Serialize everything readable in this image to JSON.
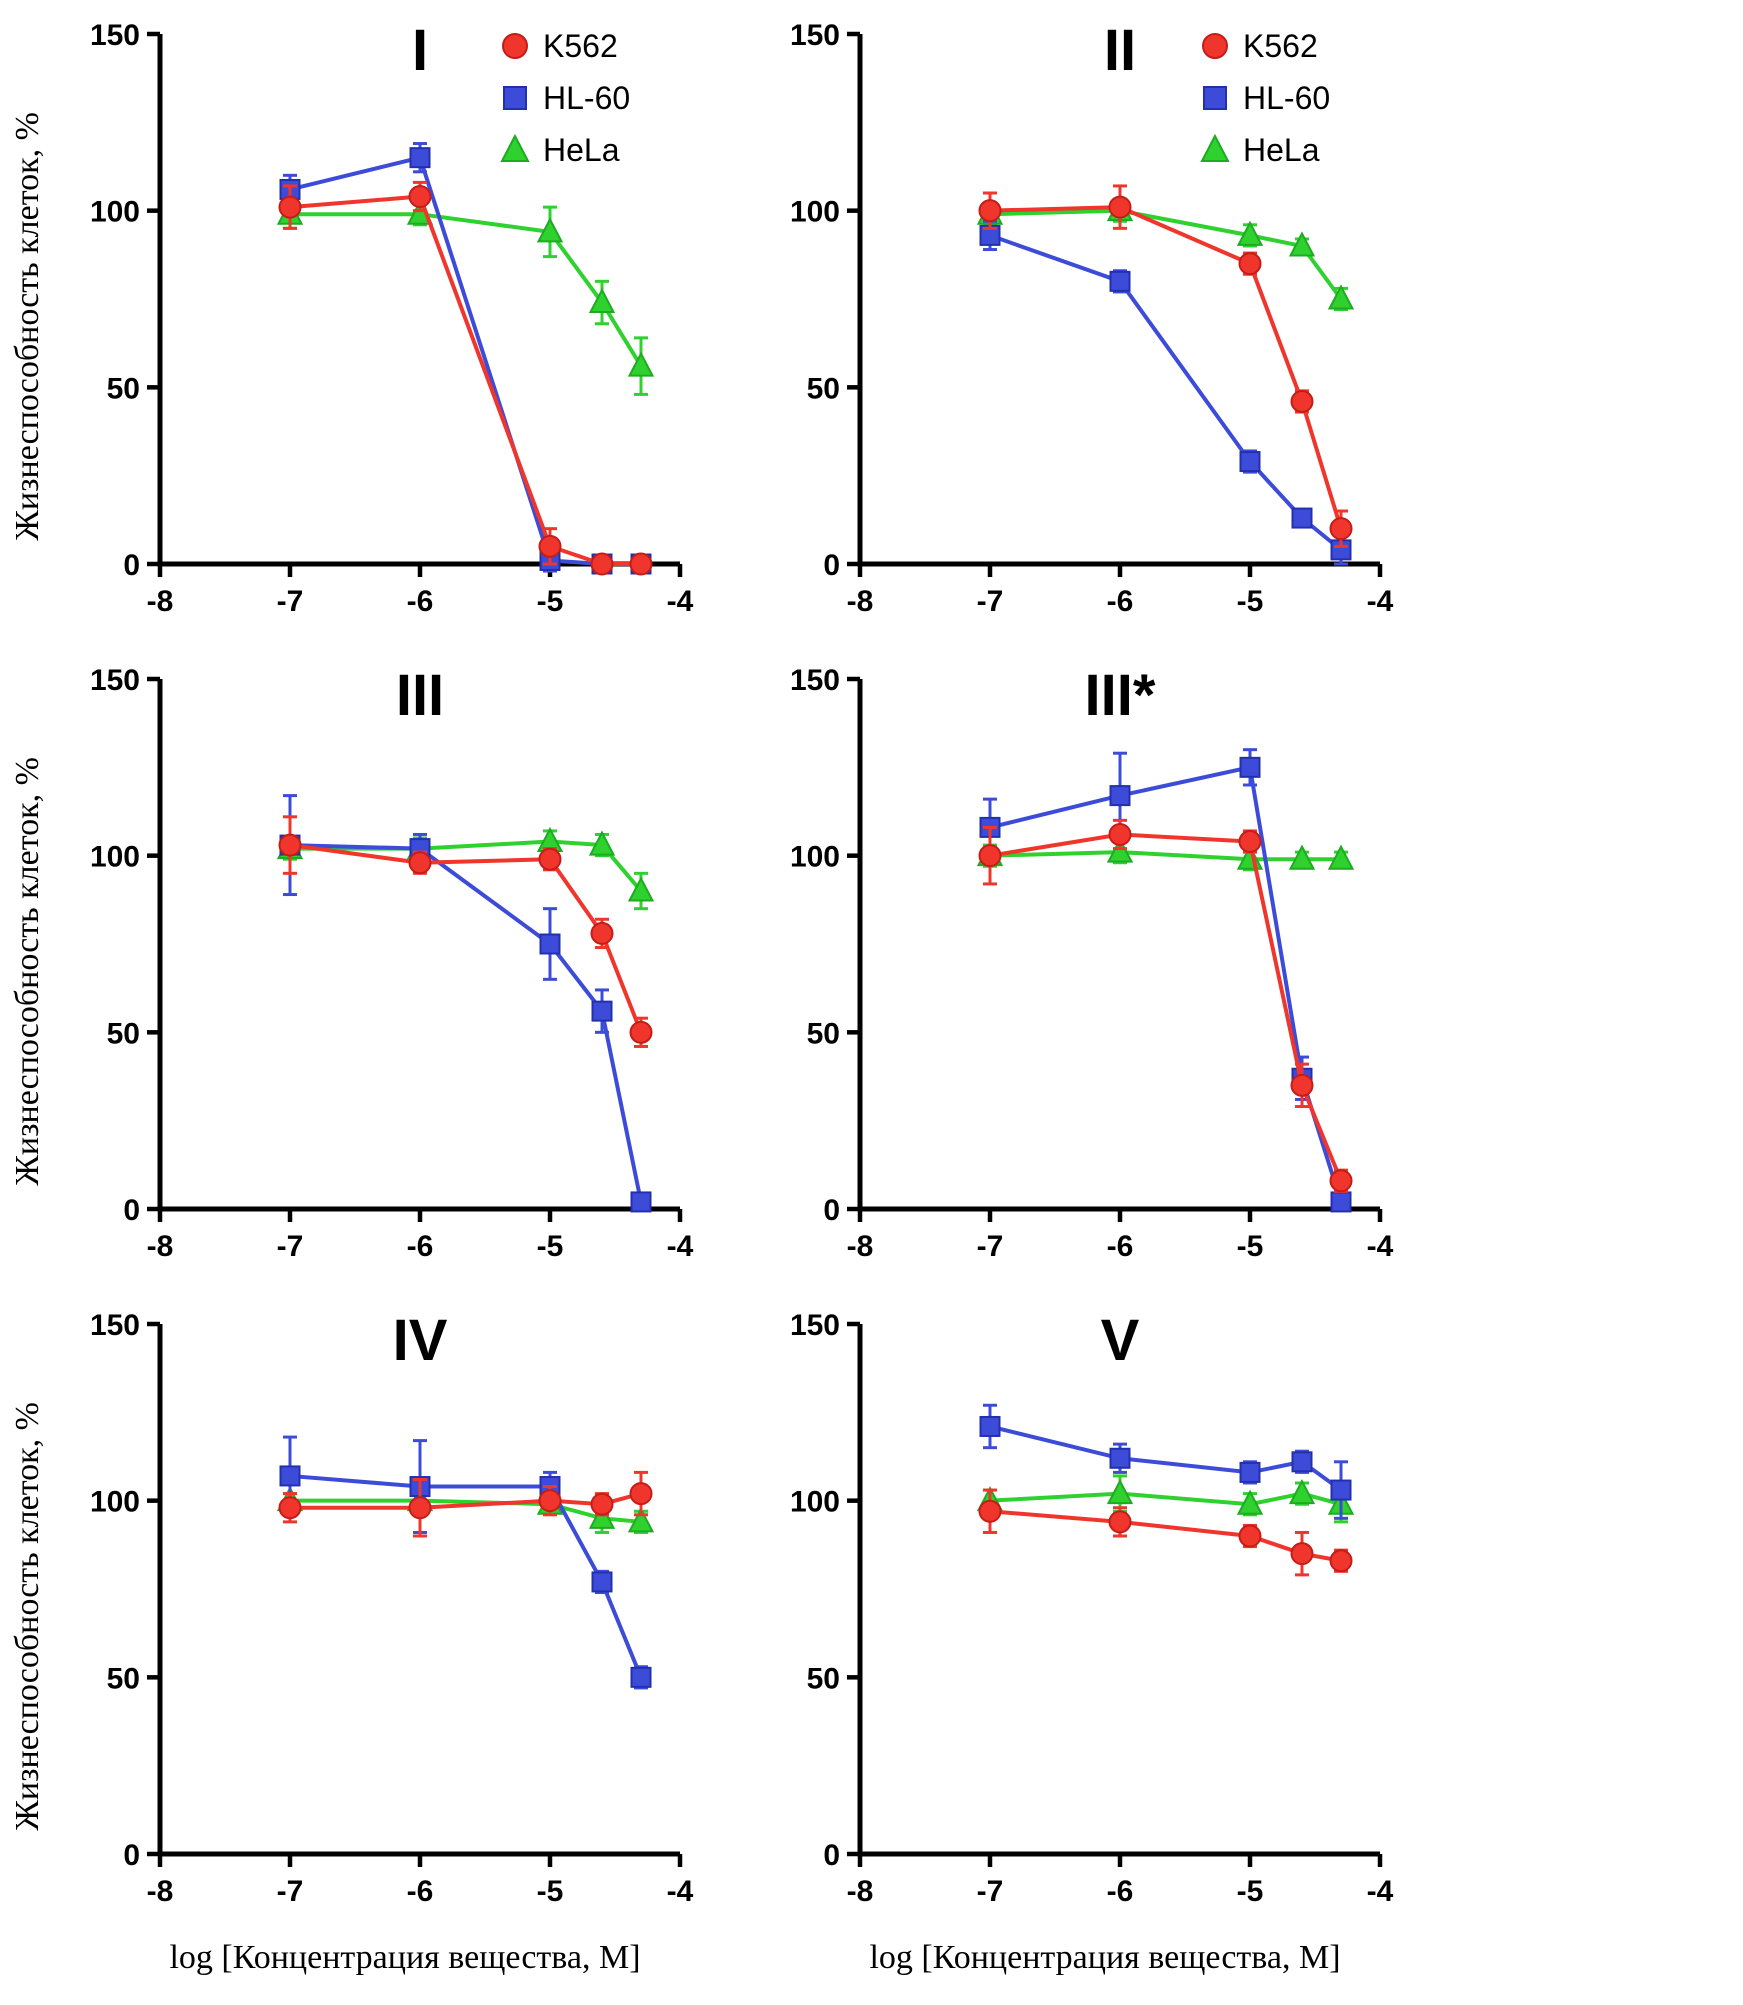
{
  "figure": {
    "ylabel": "Жизнеспособность клеток, %",
    "xlabel": "log [Концентрация вещества, М]"
  },
  "legend_labels": [
    "K562",
    "HL-60",
    "HeLa"
  ],
  "series_meta": {
    "K562": {
      "color": "#f0362c",
      "edge": "#c41d18",
      "marker": "circle"
    },
    "HL-60": {
      "color": "#3d4cd8",
      "edge": "#2330ae",
      "marker": "square"
    },
    "HeLa": {
      "color": "#2fd12f",
      "edge": "#1dab22",
      "marker": "triangle"
    }
  },
  "axis_color": "#000000",
  "chart_data": [
    {
      "type": "line",
      "title": "I",
      "legend": true,
      "x": [
        -7,
        -6,
        -5,
        -4.6,
        -4.3
      ],
      "xlim": [
        -8,
        -4
      ],
      "ylim": [
        0,
        150
      ],
      "xticks": [
        -8,
        -7,
        -6,
        -5,
        -4
      ],
      "yticks": [
        0,
        50,
        100,
        150
      ],
      "series": [
        {
          "name": "K562",
          "values": [
            101,
            104,
            5,
            0,
            0
          ],
          "errors": [
            6,
            4,
            5,
            0,
            0
          ]
        },
        {
          "name": "HL-60",
          "values": [
            106,
            115,
            1,
            0,
            0
          ],
          "errors": [
            4,
            4,
            3,
            0,
            0
          ]
        },
        {
          "name": "HeLa",
          "values": [
            99,
            99,
            94,
            74,
            56
          ],
          "errors": [
            4,
            3,
            7,
            6,
            8
          ]
        }
      ]
    },
    {
      "type": "line",
      "title": "II",
      "legend": true,
      "x": [
        -7,
        -6,
        -5,
        -4.6,
        -4.3
      ],
      "xlim": [
        -8,
        -4
      ],
      "ylim": [
        0,
        150
      ],
      "xticks": [
        -8,
        -7,
        -6,
        -5,
        -4
      ],
      "yticks": [
        0,
        50,
        100,
        150
      ],
      "series": [
        {
          "name": "K562",
          "values": [
            100,
            101,
            85,
            46,
            10
          ],
          "errors": [
            5,
            6,
            3,
            3,
            5
          ]
        },
        {
          "name": "HL-60",
          "values": [
            93,
            80,
            29,
            13,
            4
          ],
          "errors": [
            4,
            3,
            3,
            2,
            4
          ]
        },
        {
          "name": "HeLa",
          "values": [
            99,
            100,
            93,
            90,
            75
          ],
          "errors": [
            3,
            3,
            3,
            2,
            3
          ]
        }
      ]
    },
    {
      "type": "line",
      "title": "III",
      "legend": false,
      "x": [
        -7,
        -6,
        -5,
        -4.6,
        -4.3
      ],
      "xlim": [
        -8,
        -4
      ],
      "ylim": [
        0,
        150
      ],
      "xticks": [
        -8,
        -7,
        -6,
        -5,
        -4
      ],
      "yticks": [
        0,
        50,
        100,
        150
      ],
      "series": [
        {
          "name": "K562",
          "values": [
            103,
            98,
            99,
            78,
            50
          ],
          "errors": [
            8,
            3,
            3,
            4,
            4
          ]
        },
        {
          "name": "HL-60",
          "values": [
            103,
            102,
            75,
            56,
            2
          ],
          "errors": [
            14,
            4,
            10,
            6,
            2
          ]
        },
        {
          "name": "HeLa",
          "values": [
            102,
            102,
            104,
            103,
            90
          ],
          "errors": [
            3,
            3,
            3,
            3,
            5
          ]
        }
      ]
    },
    {
      "type": "line",
      "title": "III*",
      "legend": false,
      "x": [
        -7,
        -6,
        -5,
        -4.6,
        -4.3
      ],
      "xlim": [
        -8,
        -4
      ],
      "ylim": [
        0,
        150
      ],
      "xticks": [
        -8,
        -7,
        -6,
        -5,
        -4
      ],
      "yticks": [
        0,
        50,
        100,
        150
      ],
      "series": [
        {
          "name": "K562",
          "values": [
            100,
            106,
            104,
            35,
            8
          ],
          "errors": [
            8,
            4,
            3,
            6,
            3
          ]
        },
        {
          "name": "HL-60",
          "values": [
            108,
            117,
            125,
            37,
            2
          ],
          "errors": [
            8,
            12,
            5,
            6,
            2
          ]
        },
        {
          "name": "HeLa",
          "values": [
            100,
            101,
            99,
            99,
            99
          ],
          "errors": [
            3,
            3,
            3,
            2,
            2
          ]
        }
      ]
    },
    {
      "type": "line",
      "title": "IV",
      "legend": false,
      "x": [
        -7,
        -6,
        -5,
        -4.6,
        -4.3
      ],
      "xlim": [
        -8,
        -4
      ],
      "ylim": [
        0,
        150
      ],
      "xticks": [
        -8,
        -7,
        -6,
        -5,
        -4
      ],
      "yticks": [
        0,
        50,
        100,
        150
      ],
      "series": [
        {
          "name": "K562",
          "values": [
            98,
            98,
            100,
            99,
            102
          ],
          "errors": [
            4,
            8,
            4,
            3,
            6
          ]
        },
        {
          "name": "HL-60",
          "values": [
            107,
            104,
            104,
            77,
            50
          ],
          "errors": [
            11,
            13,
            4,
            3,
            3
          ]
        },
        {
          "name": "HeLa",
          "values": [
            100,
            100,
            99,
            95,
            94
          ],
          "errors": [
            2,
            3,
            2,
            4,
            3
          ]
        }
      ]
    },
    {
      "type": "line",
      "title": "V",
      "legend": false,
      "x": [
        -7,
        -6,
        -5,
        -4.6,
        -4.3
      ],
      "xlim": [
        -8,
        -4
      ],
      "ylim": [
        0,
        150
      ],
      "xticks": [
        -8,
        -7,
        -6,
        -5,
        -4
      ],
      "yticks": [
        0,
        50,
        100,
        150
      ],
      "series": [
        {
          "name": "K562",
          "values": [
            97,
            94,
            90,
            85,
            83
          ],
          "errors": [
            6,
            4,
            3,
            6,
            3
          ]
        },
        {
          "name": "HL-60",
          "values": [
            121,
            112,
            108,
            111,
            103
          ],
          "errors": [
            6,
            4,
            3,
            3,
            8
          ]
        },
        {
          "name": "HeLa",
          "values": [
            100,
            102,
            99,
            102,
            99
          ],
          "errors": [
            3,
            5,
            3,
            3,
            5
          ]
        }
      ]
    }
  ]
}
